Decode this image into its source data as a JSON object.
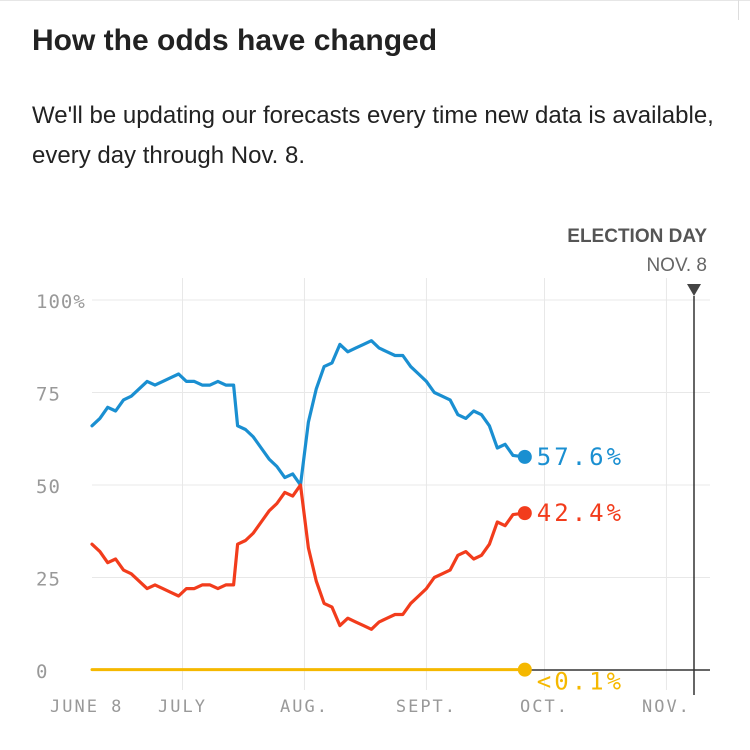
{
  "header": {
    "title": "How the odds have changed",
    "subtitle": "We'll be updating our forecasts every time new data is available, every day through Nov. 8."
  },
  "chart_data": {
    "type": "line",
    "x_start": "2016-06-08",
    "x_end": "2016-11-08",
    "ylim": [
      0,
      100
    ],
    "y_ticks": [
      "100%",
      "75",
      "50",
      "25",
      "0"
    ],
    "y_tick_values": [
      100,
      75,
      50,
      25,
      0
    ],
    "x_ticks": [
      {
        "label": "JUNE 8",
        "date": "2016-06-08"
      },
      {
        "label": "JULY",
        "date": "2016-07-01"
      },
      {
        "label": "AUG.",
        "date": "2016-08-01"
      },
      {
        "label": "SEPT.",
        "date": "2016-09-01"
      },
      {
        "label": "OCT.",
        "date": "2016-10-01"
      },
      {
        "label": "NOV.",
        "date": "2016-11-01"
      }
    ],
    "grid": true,
    "annotation": {
      "label": "ELECTION DAY",
      "sublabel": "NOV. 8",
      "date": "2016-11-08"
    },
    "series": [
      {
        "color": "#1a8fd1",
        "end_label": "57.6%",
        "points": [
          [
            "2016-06-08",
            66
          ],
          [
            "2016-06-10",
            68
          ],
          [
            "2016-06-12",
            71
          ],
          [
            "2016-06-14",
            70
          ],
          [
            "2016-06-16",
            73
          ],
          [
            "2016-06-18",
            74
          ],
          [
            "2016-06-20",
            76
          ],
          [
            "2016-06-22",
            78
          ],
          [
            "2016-06-24",
            77
          ],
          [
            "2016-06-26",
            78
          ],
          [
            "2016-06-28",
            79
          ],
          [
            "2016-06-30",
            80
          ],
          [
            "2016-07-02",
            78
          ],
          [
            "2016-07-04",
            78
          ],
          [
            "2016-07-06",
            77
          ],
          [
            "2016-07-08",
            77
          ],
          [
            "2016-07-10",
            78
          ],
          [
            "2016-07-12",
            77
          ],
          [
            "2016-07-14",
            77
          ],
          [
            "2016-07-15",
            66
          ],
          [
            "2016-07-17",
            65
          ],
          [
            "2016-07-19",
            63
          ],
          [
            "2016-07-21",
            60
          ],
          [
            "2016-07-23",
            57
          ],
          [
            "2016-07-25",
            55
          ],
          [
            "2016-07-27",
            52
          ],
          [
            "2016-07-29",
            53
          ],
          [
            "2016-07-31",
            50
          ],
          [
            "2016-08-02",
            67
          ],
          [
            "2016-08-04",
            76
          ],
          [
            "2016-08-06",
            82
          ],
          [
            "2016-08-08",
            83
          ],
          [
            "2016-08-10",
            88
          ],
          [
            "2016-08-12",
            86
          ],
          [
            "2016-08-14",
            87
          ],
          [
            "2016-08-16",
            88
          ],
          [
            "2016-08-18",
            89
          ],
          [
            "2016-08-20",
            87
          ],
          [
            "2016-08-22",
            86
          ],
          [
            "2016-08-24",
            85
          ],
          [
            "2016-08-26",
            85
          ],
          [
            "2016-08-28",
            82
          ],
          [
            "2016-08-30",
            80
          ],
          [
            "2016-09-01",
            78
          ],
          [
            "2016-09-03",
            75
          ],
          [
            "2016-09-05",
            74
          ],
          [
            "2016-09-07",
            73
          ],
          [
            "2016-09-09",
            69
          ],
          [
            "2016-09-11",
            68
          ],
          [
            "2016-09-13",
            70
          ],
          [
            "2016-09-15",
            69
          ],
          [
            "2016-09-17",
            66
          ],
          [
            "2016-09-19",
            60
          ],
          [
            "2016-09-21",
            61
          ],
          [
            "2016-09-23",
            58
          ],
          [
            "2016-09-26",
            57.6
          ]
        ]
      },
      {
        "color": "#f23c1c",
        "end_label": "42.4%",
        "points": [
          [
            "2016-06-08",
            34
          ],
          [
            "2016-06-10",
            32
          ],
          [
            "2016-06-12",
            29
          ],
          [
            "2016-06-14",
            30
          ],
          [
            "2016-06-16",
            27
          ],
          [
            "2016-06-18",
            26
          ],
          [
            "2016-06-20",
            24
          ],
          [
            "2016-06-22",
            22
          ],
          [
            "2016-06-24",
            23
          ],
          [
            "2016-06-26",
            22
          ],
          [
            "2016-06-28",
            21
          ],
          [
            "2016-06-30",
            20
          ],
          [
            "2016-07-02",
            22
          ],
          [
            "2016-07-04",
            22
          ],
          [
            "2016-07-06",
            23
          ],
          [
            "2016-07-08",
            23
          ],
          [
            "2016-07-10",
            22
          ],
          [
            "2016-07-12",
            23
          ],
          [
            "2016-07-14",
            23
          ],
          [
            "2016-07-15",
            34
          ],
          [
            "2016-07-17",
            35
          ],
          [
            "2016-07-19",
            37
          ],
          [
            "2016-07-21",
            40
          ],
          [
            "2016-07-23",
            43
          ],
          [
            "2016-07-25",
            45
          ],
          [
            "2016-07-27",
            48
          ],
          [
            "2016-07-29",
            47
          ],
          [
            "2016-07-31",
            50
          ],
          [
            "2016-08-02",
            33
          ],
          [
            "2016-08-04",
            24
          ],
          [
            "2016-08-06",
            18
          ],
          [
            "2016-08-08",
            17
          ],
          [
            "2016-08-10",
            12
          ],
          [
            "2016-08-12",
            14
          ],
          [
            "2016-08-14",
            13
          ],
          [
            "2016-08-16",
            12
          ],
          [
            "2016-08-18",
            11
          ],
          [
            "2016-08-20",
            13
          ],
          [
            "2016-08-22",
            14
          ],
          [
            "2016-08-24",
            15
          ],
          [
            "2016-08-26",
            15
          ],
          [
            "2016-08-28",
            18
          ],
          [
            "2016-08-30",
            20
          ],
          [
            "2016-09-01",
            22
          ],
          [
            "2016-09-03",
            25
          ],
          [
            "2016-09-05",
            26
          ],
          [
            "2016-09-07",
            27
          ],
          [
            "2016-09-09",
            31
          ],
          [
            "2016-09-11",
            32
          ],
          [
            "2016-09-13",
            30
          ],
          [
            "2016-09-15",
            31
          ],
          [
            "2016-09-17",
            34
          ],
          [
            "2016-09-19",
            40
          ],
          [
            "2016-09-21",
            39
          ],
          [
            "2016-09-23",
            42
          ],
          [
            "2016-09-26",
            42.4
          ]
        ]
      },
      {
        "color": "#f5b800",
        "end_label": "<0.1%",
        "points": [
          [
            "2016-06-08",
            0.1
          ],
          [
            "2016-09-26",
            0.1
          ]
        ]
      }
    ]
  }
}
